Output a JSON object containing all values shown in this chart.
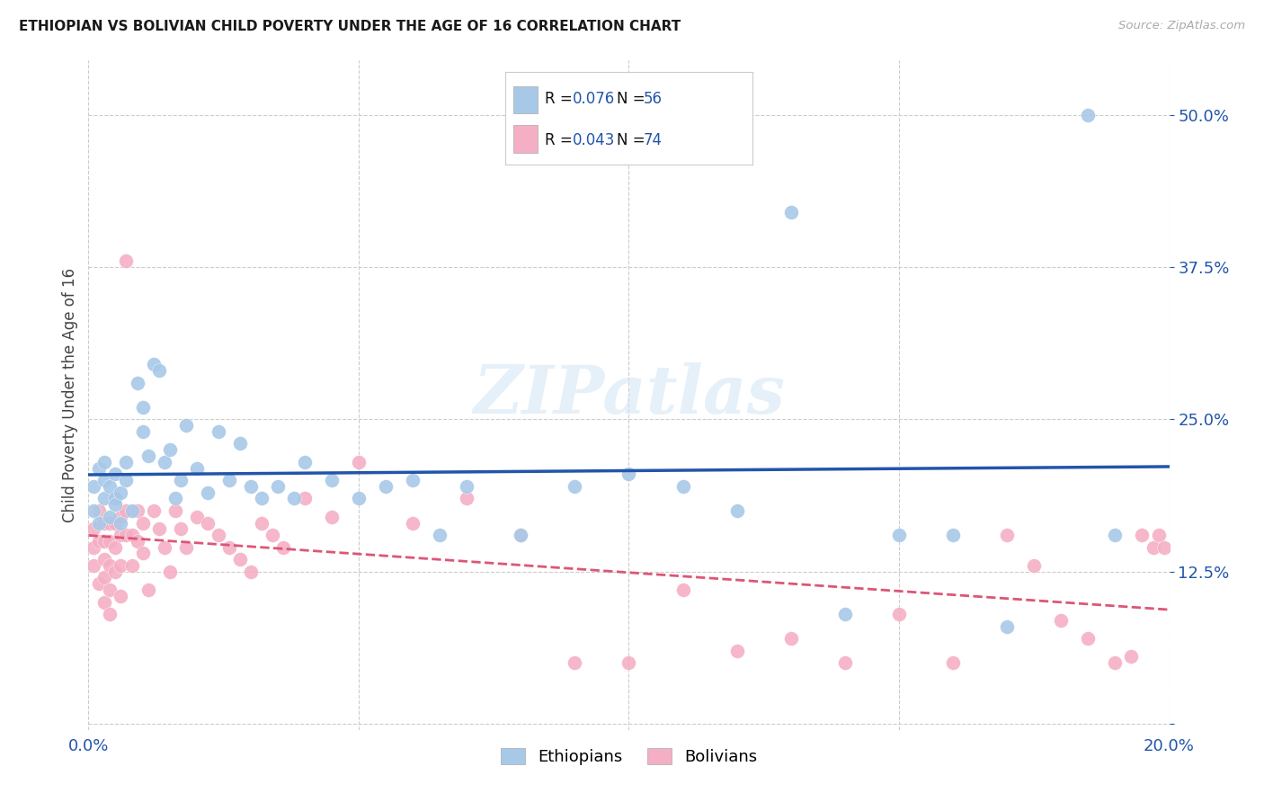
{
  "title": "ETHIOPIAN VS BOLIVIAN CHILD POVERTY UNDER THE AGE OF 16 CORRELATION CHART",
  "source": "Source: ZipAtlas.com",
  "ylabel": "Child Poverty Under the Age of 16",
  "xlim": [
    0.0,
    0.2
  ],
  "ylim": [
    -0.005,
    0.545
  ],
  "yticks": [
    0.0,
    0.125,
    0.25,
    0.375,
    0.5
  ],
  "ytick_labels": [
    "",
    "12.5%",
    "25.0%",
    "37.5%",
    "50.0%"
  ],
  "xticks": [
    0.0,
    0.05,
    0.1,
    0.15,
    0.2
  ],
  "xtick_labels": [
    "0.0%",
    "",
    "",
    "",
    "20.0%"
  ],
  "legend_labels": [
    "Ethiopians",
    "Bolivians"
  ],
  "eth_color": "#a8c8e8",
  "bol_color": "#f4afc4",
  "eth_line_color": "#2255aa",
  "bol_line_color": "#dd5577",
  "blue_text": "#2255aa",
  "R_eth": "0.076",
  "N_eth": "56",
  "R_bol": "0.043",
  "N_bol": "74",
  "watermark_text": "ZIPatlas",
  "eth_x": [
    0.001,
    0.001,
    0.002,
    0.002,
    0.003,
    0.003,
    0.003,
    0.004,
    0.004,
    0.005,
    0.005,
    0.005,
    0.006,
    0.006,
    0.007,
    0.007,
    0.008,
    0.009,
    0.01,
    0.01,
    0.011,
    0.012,
    0.013,
    0.014,
    0.015,
    0.016,
    0.017,
    0.018,
    0.02,
    0.022,
    0.024,
    0.026,
    0.028,
    0.03,
    0.032,
    0.035,
    0.038,
    0.04,
    0.045,
    0.05,
    0.055,
    0.06,
    0.065,
    0.07,
    0.08,
    0.09,
    0.1,
    0.11,
    0.12,
    0.13,
    0.14,
    0.15,
    0.16,
    0.17,
    0.185,
    0.19
  ],
  "eth_y": [
    0.175,
    0.195,
    0.165,
    0.21,
    0.185,
    0.2,
    0.215,
    0.17,
    0.195,
    0.185,
    0.205,
    0.18,
    0.19,
    0.165,
    0.2,
    0.215,
    0.175,
    0.28,
    0.26,
    0.24,
    0.22,
    0.295,
    0.29,
    0.215,
    0.225,
    0.185,
    0.2,
    0.245,
    0.21,
    0.19,
    0.24,
    0.2,
    0.23,
    0.195,
    0.185,
    0.195,
    0.185,
    0.215,
    0.2,
    0.185,
    0.195,
    0.2,
    0.155,
    0.195,
    0.155,
    0.195,
    0.205,
    0.195,
    0.175,
    0.42,
    0.09,
    0.155,
    0.155,
    0.08,
    0.5,
    0.155
  ],
  "bol_x": [
    0.001,
    0.001,
    0.001,
    0.002,
    0.002,
    0.002,
    0.003,
    0.003,
    0.003,
    0.003,
    0.003,
    0.004,
    0.004,
    0.004,
    0.004,
    0.004,
    0.005,
    0.005,
    0.005,
    0.005,
    0.006,
    0.006,
    0.006,
    0.006,
    0.007,
    0.007,
    0.007,
    0.008,
    0.008,
    0.009,
    0.009,
    0.01,
    0.01,
    0.011,
    0.012,
    0.013,
    0.014,
    0.015,
    0.016,
    0.017,
    0.018,
    0.02,
    0.022,
    0.024,
    0.026,
    0.028,
    0.03,
    0.032,
    0.034,
    0.036,
    0.04,
    0.045,
    0.05,
    0.06,
    0.07,
    0.08,
    0.09,
    0.1,
    0.11,
    0.12,
    0.13,
    0.14,
    0.15,
    0.16,
    0.17,
    0.175,
    0.18,
    0.185,
    0.19,
    0.193,
    0.195,
    0.197,
    0.198,
    0.199
  ],
  "bol_y": [
    0.16,
    0.145,
    0.13,
    0.175,
    0.15,
    0.115,
    0.165,
    0.15,
    0.135,
    0.12,
    0.1,
    0.165,
    0.15,
    0.13,
    0.11,
    0.09,
    0.185,
    0.165,
    0.145,
    0.125,
    0.17,
    0.155,
    0.13,
    0.105,
    0.175,
    0.155,
    0.38,
    0.155,
    0.13,
    0.175,
    0.15,
    0.165,
    0.14,
    0.11,
    0.175,
    0.16,
    0.145,
    0.125,
    0.175,
    0.16,
    0.145,
    0.17,
    0.165,
    0.155,
    0.145,
    0.135,
    0.125,
    0.165,
    0.155,
    0.145,
    0.185,
    0.17,
    0.215,
    0.165,
    0.185,
    0.155,
    0.05,
    0.05,
    0.11,
    0.06,
    0.07,
    0.05,
    0.09,
    0.05,
    0.155,
    0.13,
    0.085,
    0.07,
    0.05,
    0.055,
    0.155,
    0.145,
    0.155,
    0.145
  ]
}
